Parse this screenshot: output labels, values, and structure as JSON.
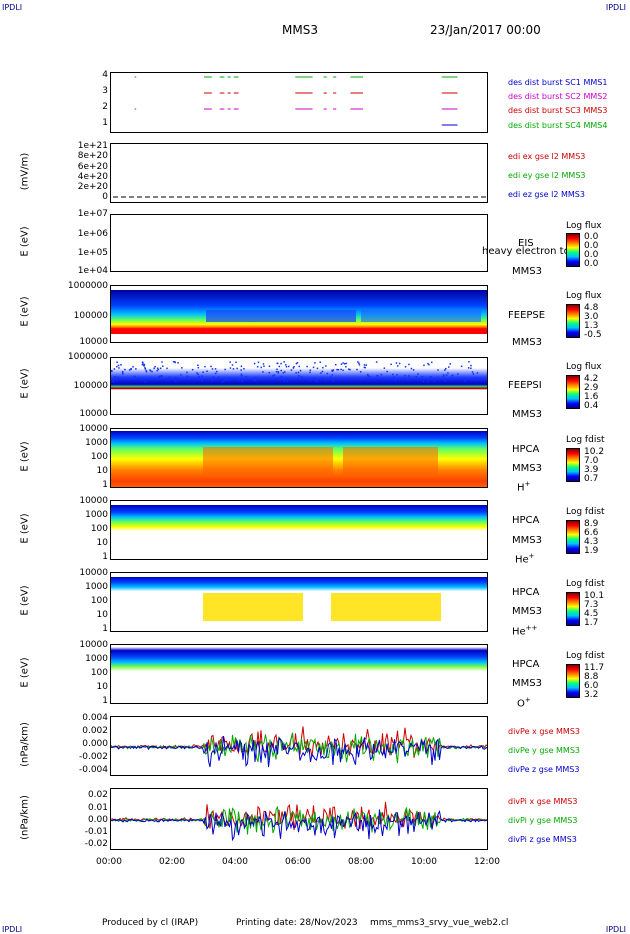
{
  "header": {
    "corner_left_top": "IPDLI",
    "corner_right_top": "IPDLI",
    "corner_left_bottom": "IPDLI",
    "corner_right_bottom": "IPDLI",
    "spacecraft": "MMS3",
    "date_time": "23/Jan/2017 00:00"
  },
  "footer": {
    "produced_by": "Produced by cl (IRAP)",
    "printing_date": "Printing date: 28/Nov/2023",
    "script_name": "mms_mms3_srvy_vue_web2.cl"
  },
  "x_axis_ticks": [
    "00:00",
    "02:00",
    "04:00",
    "06:00",
    "08:00",
    "10:00",
    "12:00"
  ],
  "chart_data": [
    {
      "type": "line",
      "id": "burst",
      "yticks": [
        "4",
        "3",
        "2",
        "1"
      ],
      "legend": [
        {
          "label": "des dist burst SC1 MMS1",
          "color": "#0000cc"
        },
        {
          "label": "des dist burst SC2 MMS2",
          "color": "#cc00cc"
        },
        {
          "label": "des dist burst SC3 MMS3",
          "color": "#cc0000"
        },
        {
          "label": "des dist burst SC4 MMS4",
          "color": "#00aa00"
        }
      ],
      "bursts": [
        [
          0.75,
          0.8
        ],
        [
          2.95,
          3.2
        ],
        [
          3.45,
          3.6
        ],
        [
          3.7,
          3.8
        ],
        [
          3.9,
          4.05
        ],
        [
          5.85,
          6.4
        ],
        [
          6.75,
          6.85
        ],
        [
          7.05,
          7.15
        ],
        [
          7.6,
          8.0
        ],
        [
          10.5,
          11.0
        ]
      ]
    },
    {
      "type": "line",
      "id": "edi",
      "ylabel": "(mV/m)",
      "yticks": [
        "1e+21",
        "8e+20",
        "6e+20",
        "4e+20",
        "2e+20",
        "0"
      ],
      "legend": [
        {
          "label": "edi ex gse l2 MMS3",
          "color": "#cc0000"
        },
        {
          "label": "edi ey gse l2 MMS3",
          "color": "#00aa00"
        },
        {
          "label": "edi ez gse l2 MMS3",
          "color": "#0000cc"
        }
      ]
    },
    {
      "type": "heatmap",
      "id": "eis",
      "ylabel": "E (eV)",
      "yticks": [
        "1e+07",
        "1e+06",
        "1e+05",
        "1e+04"
      ],
      "instrument": "EIS",
      "spacecraft": "MMS3",
      "overlay_text": "heavy electron to",
      "colorbar_label": "Log flux",
      "colorbar_values": [
        "0.0",
        "0.0",
        "0.0",
        "0.0"
      ]
    },
    {
      "type": "heatmap",
      "id": "feepse",
      "ylabel": "E (eV)",
      "yticks": [
        "1000000",
        "100000",
        "10000"
      ],
      "instrument": "FEEPSE",
      "spacecraft": "MMS3",
      "colorbar_label": "Log flux",
      "colorbar_values": [
        "4.8",
        "3.0",
        "1.3",
        "-0.5"
      ]
    },
    {
      "type": "heatmap",
      "id": "feepsi",
      "ylabel": "E (eV)",
      "yticks": [
        "1000000",
        "100000",
        "10000"
      ],
      "instrument": "FEEPSI",
      "spacecraft": "MMS3",
      "colorbar_label": "Log flux",
      "colorbar_values": [
        "4.2",
        "2.9",
        "1.6",
        "0.4"
      ]
    },
    {
      "type": "heatmap",
      "id": "hpca_h",
      "ylabel": "E (eV)",
      "yticks": [
        "10000",
        "1000",
        "100",
        "10",
        "1"
      ],
      "instrument": "HPCA",
      "spacecraft": "MMS3",
      "species": "H",
      "species_sup": "+",
      "colorbar_label": "Log fdist",
      "colorbar_values": [
        "10.2",
        "7.0",
        "3.9",
        "0.7"
      ]
    },
    {
      "type": "heatmap",
      "id": "hpca_he",
      "ylabel": "E (eV)",
      "yticks": [
        "10000",
        "1000",
        "100",
        "10",
        "1"
      ],
      "instrument": "HPCA",
      "spacecraft": "MMS3",
      "species": "He",
      "species_sup": "+",
      "colorbar_label": "Log fdist",
      "colorbar_values": [
        "8.9",
        "6.6",
        "4.3",
        "1.9"
      ]
    },
    {
      "type": "heatmap",
      "id": "hpca_hepp",
      "ylabel": "E (eV)",
      "yticks": [
        "10000",
        "1000",
        "100",
        "10",
        "1"
      ],
      "instrument": "HPCA",
      "spacecraft": "MMS3",
      "species": "He",
      "species_sup": "++",
      "colorbar_label": "Log fdist",
      "colorbar_values": [
        "10.1",
        "7.3",
        "4.5",
        "1.7"
      ]
    },
    {
      "type": "heatmap",
      "id": "hpca_o",
      "ylabel": "E (eV)",
      "yticks": [
        "10000",
        "1000",
        "100",
        "10",
        "1"
      ],
      "instrument": "HPCA",
      "spacecraft": "MMS3",
      "species": "O",
      "species_sup": "+",
      "colorbar_label": "Log fdist",
      "colorbar_values": [
        "11.7",
        "8.8",
        "6.0",
        "3.2"
      ]
    },
    {
      "type": "line",
      "id": "divpe",
      "ylabel": "(nPa/km)",
      "yticks": [
        "0.004",
        "0.002",
        "0.000",
        "-0.002",
        "-0.004"
      ],
      "ylim": [
        -0.0045,
        0.0045
      ],
      "legend": [
        {
          "label": "divPe x gse MMS3",
          "color": "#cc0000"
        },
        {
          "label": "divPe y gse MMS3",
          "color": "#00aa00"
        },
        {
          "label": "divPe z gse MMS3",
          "color": "#0000cc"
        }
      ]
    },
    {
      "type": "line",
      "id": "divpi",
      "ylabel": "(nPa/km)",
      "yticks": [
        "0.02",
        "0.01",
        "0.00",
        "-0.01",
        "-0.02"
      ],
      "ylim": [
        -0.025,
        0.025
      ],
      "legend": [
        {
          "label": "divPi x gse MMS3",
          "color": "#cc0000"
        },
        {
          "label": "divPi y gse MMS3",
          "color": "#00aa00"
        },
        {
          "label": "divPi z gse MMS3",
          "color": "#0000cc"
        }
      ]
    }
  ]
}
